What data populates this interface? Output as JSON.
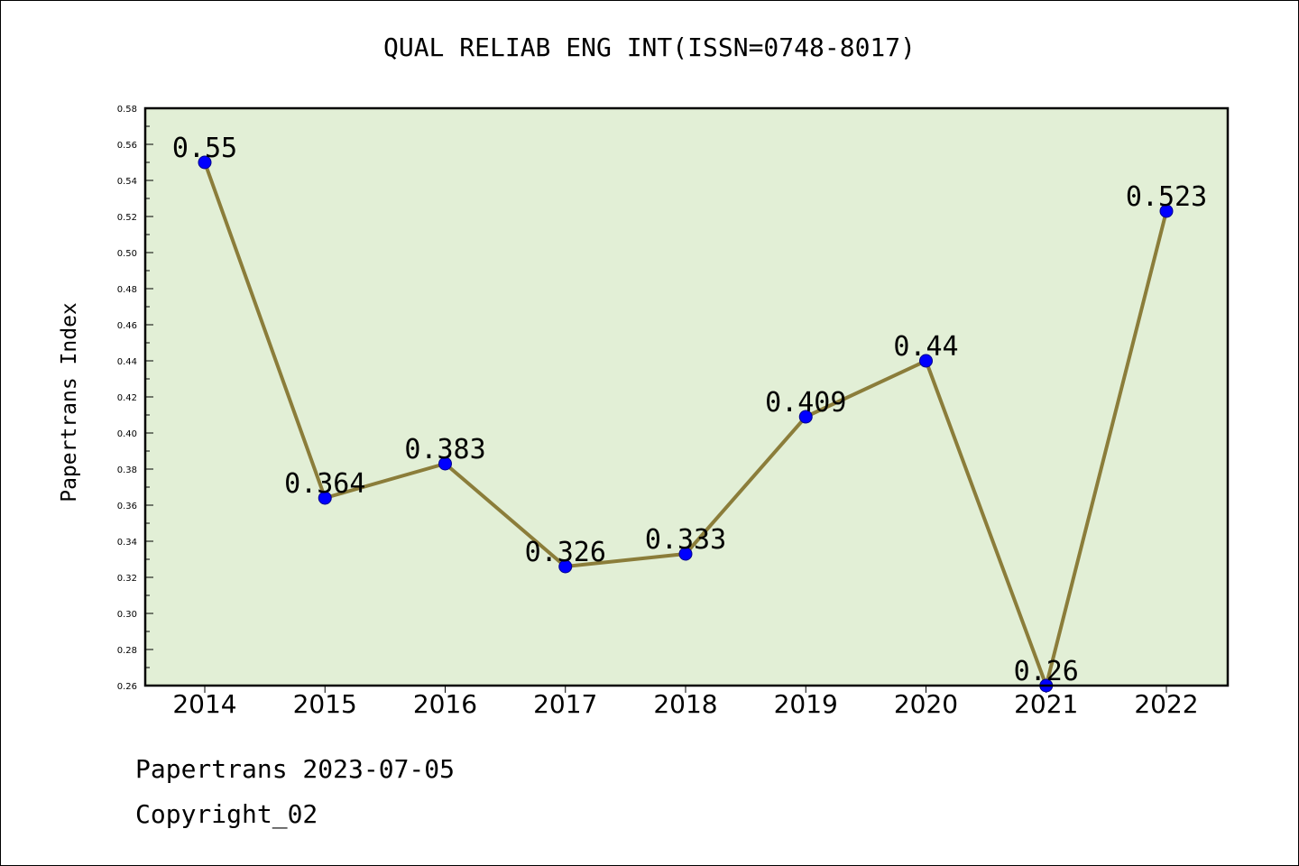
{
  "title": "QUAL RELIAB ENG INT(ISSN=0748-8017)",
  "footer": {
    "line1": "Papertrans 2023-07-05",
    "line2": "Copyright_02"
  },
  "colors": {
    "plot_background": "#e2efd6",
    "line": "#8b7d3a",
    "marker": "#0000ff",
    "marker_edge": "#00008b"
  },
  "chart_data": {
    "type": "line",
    "title": "QUAL RELIAB ENG INT(ISSN=0748-8017)",
    "xlabel": "",
    "ylabel": "Papertrans Index",
    "categories": [
      "2014",
      "2015",
      "2016",
      "2017",
      "2018",
      "2019",
      "2020",
      "2021",
      "2022"
    ],
    "values": [
      0.55,
      0.364,
      0.383,
      0.326,
      0.333,
      0.409,
      0.44,
      0.26,
      0.523
    ],
    "data_labels": [
      "0.55",
      "0.364",
      "0.383",
      "0.326",
      "0.333",
      "0.409",
      "0.44",
      "0.26",
      "0.523"
    ],
    "ylim": [
      0.26,
      0.58
    ],
    "yticks": [
      "0.26",
      "0.28",
      "0.30",
      "0.32",
      "0.34",
      "0.36",
      "0.38",
      "0.40",
      "0.42",
      "0.44",
      "0.46",
      "0.48",
      "0.50",
      "0.52",
      "0.54",
      "0.56",
      "0.58"
    ],
    "grid": false,
    "legend": "none"
  }
}
